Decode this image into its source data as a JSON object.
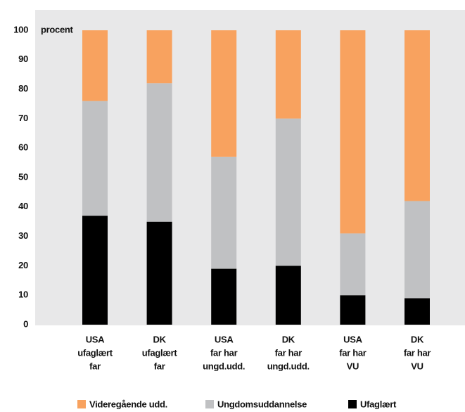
{
  "chart_data": {
    "type": "stacked-bar",
    "y_label": "procent",
    "categories": [
      [
        "USA",
        "ufaglært",
        "far"
      ],
      [
        "DK",
        "ufaglært",
        "far"
      ],
      [
        "USA",
        "far har",
        "ungd.udd."
      ],
      [
        "DK",
        "far har",
        "ungd.udd."
      ],
      [
        "USA",
        "far har",
        "VU"
      ],
      [
        "DK",
        "far har",
        "VU"
      ]
    ],
    "series": [
      {
        "name": "Videregående udd.",
        "color": "#f8a25f",
        "values": [
          24,
          18,
          43,
          30,
          69,
          58
        ]
      },
      {
        "name": "Ungdomsuddannelse",
        "color": "#c0c1c3",
        "values": [
          39,
          47,
          38,
          50,
          21,
          33
        ]
      },
      {
        "name": "Ufaglært",
        "color": "#000000",
        "values": [
          37,
          35,
          19,
          20,
          10,
          9
        ]
      }
    ],
    "ylim": [
      0,
      100
    ],
    "yticks": [
      0,
      10,
      20,
      30,
      40,
      50,
      60,
      70,
      80,
      90,
      100
    ],
    "grid": false
  }
}
